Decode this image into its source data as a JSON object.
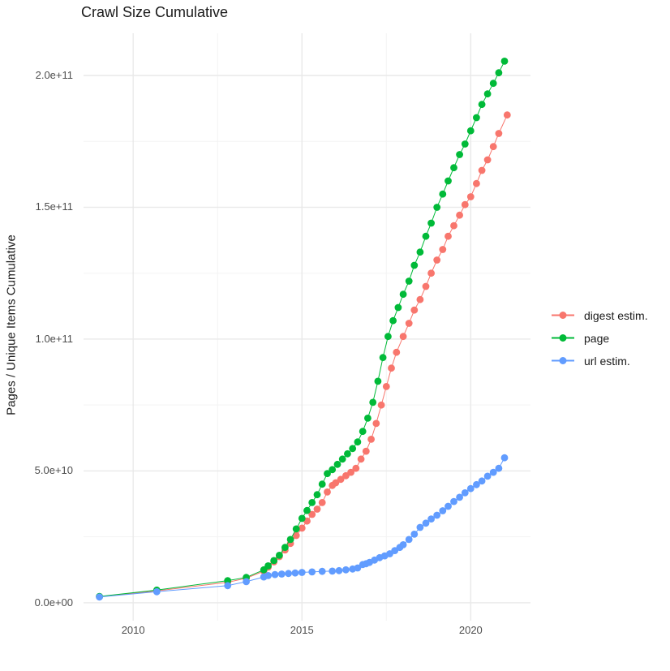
{
  "title": "Crawl Size Cumulative",
  "chart_data": {
    "type": "line",
    "title": "Crawl Size Cumulative",
    "xlabel": "",
    "ylabel": "Pages / Unique Items Cumulative",
    "legend_position": "right-center",
    "grid": true,
    "style": "points connected by thin lines, ggplot-like white panel with light gray gridlines",
    "value_units": "points are [year, cumulative count in billions (1e9)]",
    "x_domain": [
      2008.53,
      2021.77
    ],
    "y_domain_e9": [
      -6.8,
      216
    ],
    "x_ticks": [
      {
        "v": 2010,
        "label": "2010"
      },
      {
        "v": 2015,
        "label": "2015"
      },
      {
        "v": 2020,
        "label": "2020"
      }
    ],
    "x_minor": [
      2012.5,
      2017.5
    ],
    "y_ticks": [
      {
        "v": 0,
        "label": "0.0e+00"
      },
      {
        "v": 50,
        "label": "5.0e+10"
      },
      {
        "v": 100,
        "label": "1.0e+11"
      },
      {
        "v": 150,
        "label": "1.5e+11"
      },
      {
        "v": 200,
        "label": "2.0e+11"
      }
    ],
    "y_minor": [
      25,
      75,
      125,
      175
    ],
    "series": [
      {
        "name": "digest estim.",
        "color": "#F8766D",
        "points": [
          [
            2009.0,
            2.3
          ],
          [
            2010.7,
            4.5
          ],
          [
            2012.8,
            7.8
          ],
          [
            2013.35,
            9.3
          ],
          [
            2013.87,
            12
          ],
          [
            2014.0,
            13.5
          ],
          [
            2014.17,
            15.5
          ],
          [
            2014.33,
            17.5
          ],
          [
            2014.5,
            20
          ],
          [
            2014.66,
            22.5
          ],
          [
            2014.83,
            25.5
          ],
          [
            2015.0,
            28.3
          ],
          [
            2015.15,
            31
          ],
          [
            2015.3,
            33.5
          ],
          [
            2015.45,
            35.5
          ],
          [
            2015.6,
            38
          ],
          [
            2015.75,
            42
          ],
          [
            2015.9,
            44.5
          ],
          [
            2016.0,
            45.5
          ],
          [
            2016.15,
            46.8
          ],
          [
            2016.3,
            48.2
          ],
          [
            2016.45,
            49.5
          ],
          [
            2016.6,
            51
          ],
          [
            2016.75,
            54.5
          ],
          [
            2016.9,
            57.5
          ],
          [
            2017.05,
            62
          ],
          [
            2017.2,
            68
          ],
          [
            2017.35,
            75
          ],
          [
            2017.5,
            82
          ],
          [
            2017.65,
            89
          ],
          [
            2017.8,
            95
          ],
          [
            2018.0,
            101
          ],
          [
            2018.17,
            106
          ],
          [
            2018.33,
            111
          ],
          [
            2018.5,
            115
          ],
          [
            2018.67,
            120
          ],
          [
            2018.83,
            125
          ],
          [
            2019.0,
            130
          ],
          [
            2019.17,
            134
          ],
          [
            2019.33,
            139
          ],
          [
            2019.5,
            143
          ],
          [
            2019.67,
            147
          ],
          [
            2019.83,
            151
          ],
          [
            2020.0,
            154
          ],
          [
            2020.17,
            159
          ],
          [
            2020.33,
            164
          ],
          [
            2020.5,
            168
          ],
          [
            2020.67,
            173
          ],
          [
            2020.83,
            178
          ],
          [
            2021.08,
            185
          ]
        ]
      },
      {
        "name": "page",
        "color": "#00BA38",
        "points": [
          [
            2009.0,
            2.4
          ],
          [
            2010.7,
            4.8
          ],
          [
            2012.8,
            8.4
          ],
          [
            2013.35,
            9.6
          ],
          [
            2013.87,
            12.5
          ],
          [
            2014.0,
            14
          ],
          [
            2014.17,
            16
          ],
          [
            2014.33,
            18
          ],
          [
            2014.5,
            21
          ],
          [
            2014.66,
            24
          ],
          [
            2014.83,
            28
          ],
          [
            2015.0,
            32
          ],
          [
            2015.15,
            35
          ],
          [
            2015.3,
            38
          ],
          [
            2015.45,
            41
          ],
          [
            2015.6,
            45
          ],
          [
            2015.75,
            49
          ],
          [
            2015.9,
            50.5
          ],
          [
            2016.05,
            52.5
          ],
          [
            2016.2,
            54.5
          ],
          [
            2016.35,
            56.5
          ],
          [
            2016.5,
            58.5
          ],
          [
            2016.65,
            61
          ],
          [
            2016.8,
            65
          ],
          [
            2016.95,
            70
          ],
          [
            2017.1,
            76
          ],
          [
            2017.25,
            84
          ],
          [
            2017.4,
            93
          ],
          [
            2017.55,
            101
          ],
          [
            2017.7,
            107
          ],
          [
            2017.85,
            112
          ],
          [
            2018.0,
            117
          ],
          [
            2018.17,
            122
          ],
          [
            2018.33,
            128
          ],
          [
            2018.5,
            133
          ],
          [
            2018.67,
            139
          ],
          [
            2018.83,
            144
          ],
          [
            2019.0,
            150
          ],
          [
            2019.17,
            155
          ],
          [
            2019.33,
            160
          ],
          [
            2019.5,
            165
          ],
          [
            2019.67,
            170
          ],
          [
            2019.83,
            174
          ],
          [
            2020.0,
            179
          ],
          [
            2020.17,
            184
          ],
          [
            2020.33,
            189
          ],
          [
            2020.5,
            193
          ],
          [
            2020.67,
            197
          ],
          [
            2020.83,
            201
          ],
          [
            2021.0,
            205.4
          ]
        ]
      },
      {
        "name": "url estim.",
        "color": "#619CFF",
        "points": [
          [
            2009.0,
            2.2
          ],
          [
            2010.7,
            4.2
          ],
          [
            2012.8,
            6.5
          ],
          [
            2013.35,
            8.0
          ],
          [
            2013.87,
            9.8
          ],
          [
            2014.0,
            10.3
          ],
          [
            2014.2,
            10.7
          ],
          [
            2014.4,
            10.9
          ],
          [
            2014.6,
            11.1
          ],
          [
            2014.8,
            11.3
          ],
          [
            2015.0,
            11.5
          ],
          [
            2015.3,
            11.7
          ],
          [
            2015.6,
            11.9
          ],
          [
            2015.9,
            12.0
          ],
          [
            2016.1,
            12.2
          ],
          [
            2016.3,
            12.5
          ],
          [
            2016.5,
            12.8
          ],
          [
            2016.65,
            13.2
          ],
          [
            2016.8,
            14.5
          ],
          [
            2016.9,
            14.8
          ],
          [
            2017.0,
            15.3
          ],
          [
            2017.15,
            16.2
          ],
          [
            2017.3,
            17.1
          ],
          [
            2017.45,
            17.8
          ],
          [
            2017.6,
            18.6
          ],
          [
            2017.75,
            19.8
          ],
          [
            2017.9,
            21
          ],
          [
            2018.0,
            22
          ],
          [
            2018.17,
            24
          ],
          [
            2018.33,
            26
          ],
          [
            2018.5,
            28.6
          ],
          [
            2018.67,
            30.2
          ],
          [
            2018.83,
            31.8
          ],
          [
            2019.0,
            33.2
          ],
          [
            2019.17,
            34.9
          ],
          [
            2019.33,
            36.6
          ],
          [
            2019.5,
            38.4
          ],
          [
            2019.67,
            40
          ],
          [
            2019.83,
            41.7
          ],
          [
            2020.0,
            43.3
          ],
          [
            2020.17,
            44.8
          ],
          [
            2020.33,
            46.2
          ],
          [
            2020.5,
            48
          ],
          [
            2020.67,
            49.5
          ],
          [
            2020.83,
            51
          ],
          [
            2021.0,
            55
          ]
        ]
      }
    ]
  }
}
